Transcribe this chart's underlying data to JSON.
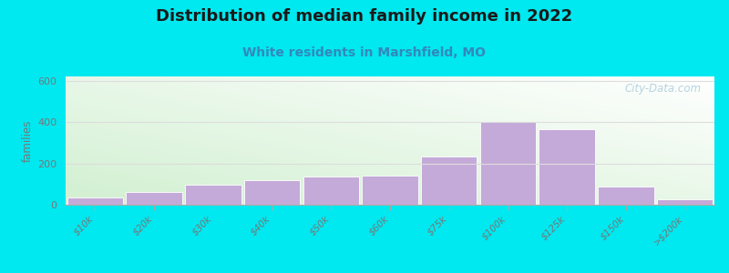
{
  "title": "Distribution of median family income in 2022",
  "subtitle": "White residents in Marshfield, MO",
  "ylabel": "families",
  "categories": [
    "$10k",
    "$20k",
    "$30k",
    "$40k",
    "$50k",
    "$60k",
    "$75k",
    "$100k",
    "$125k",
    "$150k",
    ">$200k"
  ],
  "values": [
    35,
    60,
    95,
    120,
    135,
    140,
    235,
    400,
    365,
    90,
    28
  ],
  "bar_color": "#c4aad8",
  "bar_edgecolor": "#ffffff",
  "ylim": [
    0,
    620
  ],
  "yticks": [
    0,
    200,
    400,
    600
  ],
  "background_outer": "#00e8f0",
  "title_fontsize": 13,
  "subtitle_fontsize": 10,
  "subtitle_color": "#3388bb",
  "watermark": "City-Data.com",
  "watermark_color": "#aaccdd",
  "grid_color": "#dddddd",
  "tick_color": "#777777"
}
